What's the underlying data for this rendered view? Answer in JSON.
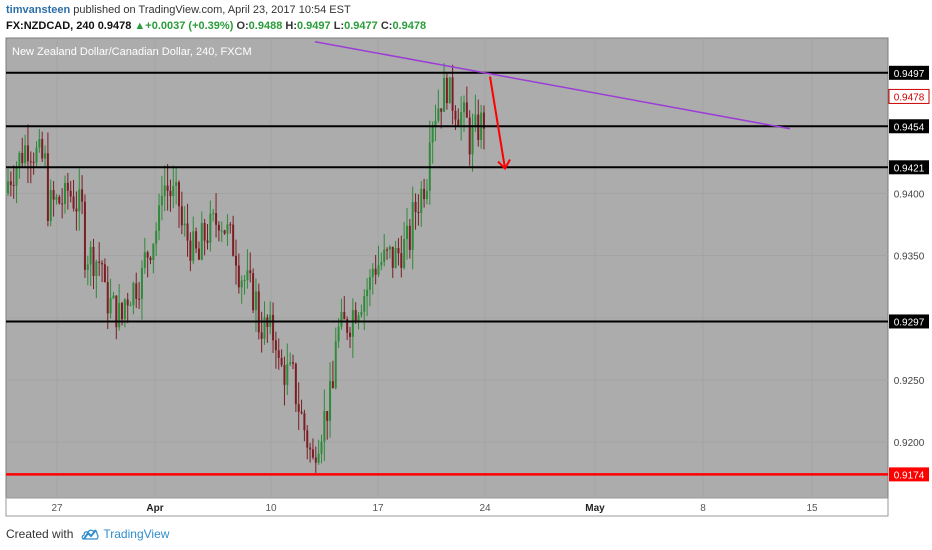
{
  "header": {
    "author": "timvansteen",
    "published": "published on TradingView.com, April 23, 2017 10:54 EST",
    "symbol": "FX:NZDCAD, 240",
    "last": "0.9478",
    "change": "+0.0037 (+0.39%)",
    "o_label": "O:",
    "o": "0.9488",
    "h_label": "H:",
    "h": "0.9497",
    "l_label": "L:",
    "l": "0.9477",
    "c_label": "C:",
    "c": "0.9478"
  },
  "footer": {
    "created_with": "Created with",
    "brand": "TradingView"
  },
  "colors": {
    "plot_bg": "#acacac",
    "candle_up": "#2e8b3a",
    "candle_down": "#7a1e24",
    "level": "#000000",
    "support_red": "#ff0000",
    "trendline": "#9b3dd6",
    "arrow": "#ff0000"
  },
  "chart_data": {
    "type": "candlestick",
    "title": "New Zealand Dollar/Canadian Dollar, 240, FXCM",
    "x_ticks": [
      "27",
      "Apr",
      "10",
      "17",
      "24",
      "May",
      "8",
      "15"
    ],
    "y_ticks": [
      "0.9400",
      "0.9350",
      "0.9250",
      "0.9200"
    ],
    "ylim": [
      0.9155,
      0.9525
    ],
    "horizontal_levels": [
      {
        "value": 0.9497,
        "label": "0.9497",
        "color": "#000000"
      },
      {
        "value": 0.9454,
        "label": "0.9454",
        "color": "#000000"
      },
      {
        "value": 0.9421,
        "label": "0.9421",
        "color": "#000000"
      },
      {
        "value": 0.9297,
        "label": "0.9297",
        "color": "#000000"
      },
      {
        "value": 0.9174,
        "label": "0.9174",
        "color": "#ff0000"
      }
    ],
    "last_price": {
      "value": 0.9478,
      "label": "0.9478"
    },
    "trendline": {
      "from": [
        "Mar 19",
        0.9522
      ],
      "to": [
        "May 12",
        0.9452
      ],
      "color": "#9b3dd6"
    },
    "projection_arrow": {
      "from": [
        "Apr 23",
        0.9494
      ],
      "to": [
        "Apr 24",
        0.942
      ],
      "color": "#ff0000"
    },
    "price_path": [
      [
        0.94,
        0.941
      ],
      [
        0.944,
        0.944
      ],
      [
        0.9423,
        0.939
      ],
      [
        0.9395,
        0.9405
      ],
      [
        0.9383,
        0.9353
      ],
      [
        0.9343,
        0.9318
      ],
      [
        0.9298,
        0.9313
      ],
      [
        0.9333,
        0.934
      ],
      [
        0.9383,
        0.941
      ],
      [
        0.939,
        0.9375
      ],
      [
        0.9345,
        0.936
      ],
      [
        0.938,
        0.9383
      ],
      [
        0.935,
        0.934
      ],
      [
        0.9313,
        0.9296
      ],
      [
        0.9285,
        0.9262
      ],
      [
        0.925,
        0.924
      ],
      [
        0.9178,
        0.9195
      ],
      [
        0.9243,
        0.9285
      ],
      [
        0.93,
        0.9305
      ],
      [
        0.933,
        0.934
      ],
      [
        0.935,
        0.9345
      ],
      [
        0.9363,
        0.9375
      ],
      [
        0.942,
        0.9455
      ],
      [
        0.949,
        0.948
      ],
      [
        0.9455,
        0.944
      ],
      [
        0.9463,
        0.9478
      ]
    ]
  }
}
